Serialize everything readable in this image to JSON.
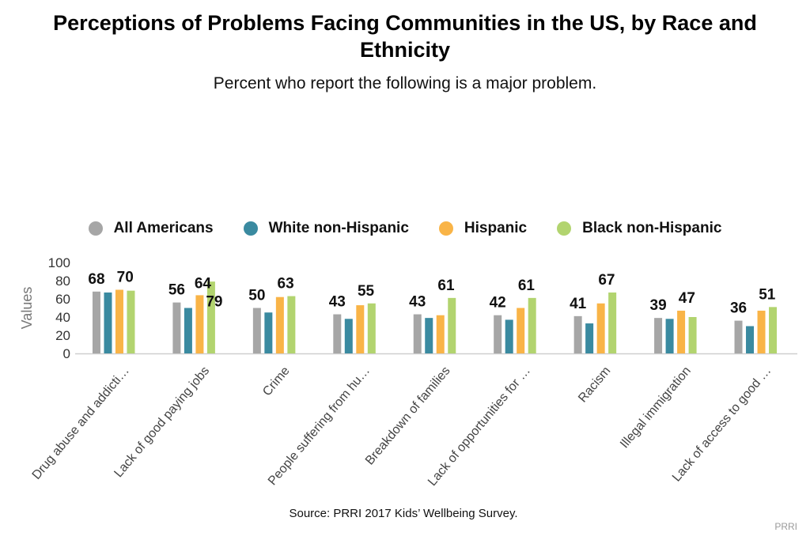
{
  "title": "Perceptions of Problems Facing Communities in the US, by Race and Ethnicity",
  "subtitle": "Percent who report the following is a major problem.",
  "source": "Source: PRRI 2017 Kids’ Wellbeing Survey.",
  "brand": "PRRI",
  "chart_data": {
    "type": "bar",
    "title": "Perceptions of Problems Facing Communities in the US, by Race and Ethnicity",
    "subtitle": "Percent who report the following is a major problem.",
    "xlabel": "",
    "ylabel": "Values",
    "ylim": [
      0,
      100
    ],
    "yticks": [
      0,
      20,
      40,
      60,
      80,
      100
    ],
    "legend_position": "top",
    "categories": [
      "Drug abuse and addicti…",
      "Lack of good paying jobs",
      "Crime",
      "People suffering from hu…",
      "Breakdown of families",
      "Lack of opportunities for …",
      "Racism",
      "Illegal immigration",
      "Lack of access to good …"
    ],
    "series": [
      {
        "name": "All Americans",
        "color": "#a6a6a6",
        "values": [
          68,
          56,
          50,
          43,
          43,
          42,
          41,
          39,
          36
        ]
      },
      {
        "name": "White non-Hispanic",
        "color": "#3a8aa0",
        "values": [
          67,
          50,
          45,
          38,
          39,
          37,
          33,
          38,
          30
        ]
      },
      {
        "name": "Hispanic",
        "color": "#f9b447",
        "values": [
          70,
          64,
          62,
          53,
          42,
          50,
          55,
          47,
          47
        ]
      },
      {
        "name": "Black non-Hispanic",
        "color": "#b2d46f",
        "values": [
          69,
          79,
          63,
          55,
          61,
          61,
          67,
          40,
          51
        ]
      }
    ],
    "data_labels": [
      [
        "68",
        "70"
      ],
      [
        "56",
        "64",
        "79"
      ],
      [
        "50",
        "63"
      ],
      [
        "43",
        "55"
      ],
      [
        "43",
        "61"
      ],
      [
        "42",
        "61"
      ],
      [
        "41",
        "67"
      ],
      [
        "39",
        "47"
      ],
      [
        "36",
        "51"
      ]
    ]
  }
}
